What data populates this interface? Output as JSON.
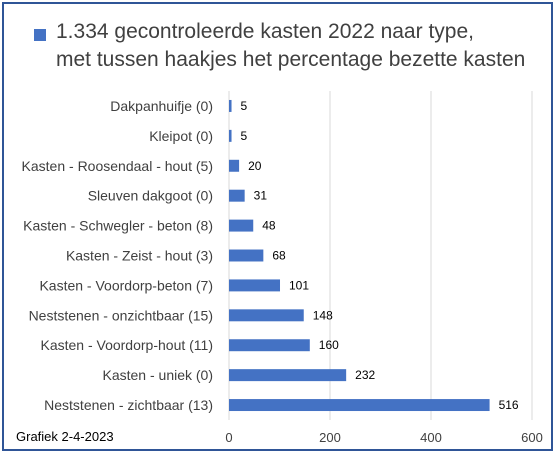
{
  "colors": {
    "bar": "#4472c4",
    "frame": "#2f5597",
    "grid": "#d9d9d9"
  },
  "legend": {
    "icon": "square-marker"
  },
  "title_lines": [
    "1.334 gecontroleerde kasten 2022 naar type,",
    "met tussen haakjes het percentage bezette kasten"
  ],
  "footer": {
    "text": "Grafiek  2-4-2023"
  },
  "chart_data": {
    "type": "bar",
    "orientation": "horizontal",
    "title": "1.334 gecontroleerde kasten 2022 naar type, met tussen haakjes het percentage bezette kasten",
    "categories": [
      "Dakpanhuifje (0)",
      "Kleipot (0)",
      "Kasten - Roosendaal - hout (5)",
      "Sleuven dakgoot (0)",
      "Kasten - Schwegler - beton (8)",
      "Kasten - Zeist - hout (3)",
      "Kasten - Voordorp-beton (7)",
      "Neststenen - onzichtbaar (15)",
      "Kasten - Voordorp-hout (11)",
      "Kasten - uniek (0)",
      "Neststenen - zichtbaar (13)"
    ],
    "values": [
      5,
      5,
      20,
      31,
      48,
      68,
      101,
      148,
      160,
      232,
      516
    ],
    "xlim": [
      0,
      600
    ],
    "xticks": [
      0,
      200,
      400,
      600
    ],
    "grid": true,
    "data_labels": true,
    "legend": "top-left"
  }
}
